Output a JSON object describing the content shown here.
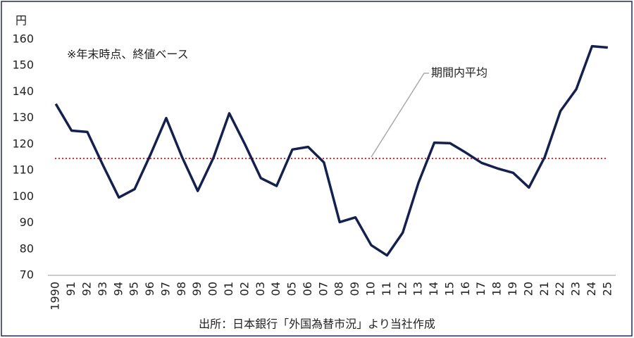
{
  "chart_data": {
    "type": "line",
    "y_unit": "円",
    "note": "※年末時点、終値ベース",
    "average_label": "期間内平均",
    "average": 114.6,
    "average_color": "#d93030",
    "source": "出所：日本銀行「外国為替市況」より当社作成",
    "categories": [
      "1990",
      "91",
      "92",
      "93",
      "94",
      "95",
      "96",
      "97",
      "98",
      "99",
      "00",
      "01",
      "02",
      "03",
      "04",
      "05",
      "06",
      "07",
      "08",
      "09",
      "10",
      "11",
      "12",
      "13",
      "14",
      "15",
      "16",
      "17",
      "18",
      "19",
      "20",
      "21",
      "22",
      "23",
      "24",
      "25"
    ],
    "series": [
      {
        "color": "#14204d",
        "values": [
          135.4,
          125.2,
          124.7,
          111.9,
          99.7,
          102.9,
          116.0,
          130.0,
          115.2,
          102.2,
          114.9,
          131.8,
          119.9,
          107.1,
          104.1,
          118.0,
          119.0,
          113.1,
          90.3,
          92.1,
          81.5,
          77.6,
          86.3,
          105.4,
          120.6,
          120.4,
          116.8,
          112.9,
          110.8,
          109.1,
          103.5,
          115.1,
          132.7,
          141.0,
          157.4,
          156.9
        ]
      }
    ],
    "ylim": [
      70,
      160
    ],
    "yticks": [
      70,
      80,
      90,
      100,
      110,
      120,
      130,
      140,
      150,
      160
    ]
  }
}
